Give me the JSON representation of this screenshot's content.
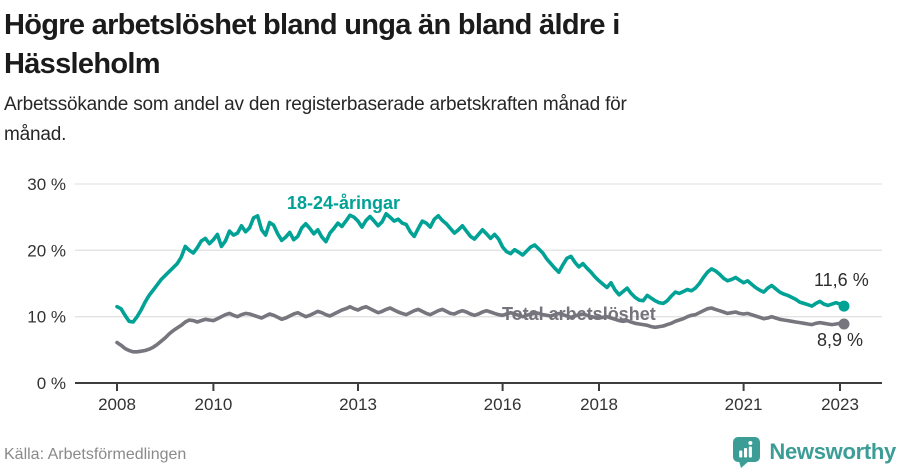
{
  "header": {
    "title_lines": [
      "Högre arbetslöshet bland unga än bland äldre i",
      "Hässleholm"
    ],
    "subtitle_lines": [
      "Arbetssökande som andel av den registerbaserade arbetskraften månad för",
      "månad."
    ]
  },
  "chart_data": {
    "type": "line",
    "title": "Högre arbetslöshet bland unga än bland äldre i Hässleholm",
    "subtitle": "Arbetssökande som andel av den registerbaserade arbetskraften månad för månad.",
    "x_start_year": 2008,
    "x_frequency": "monthly",
    "x_ticks": [
      {
        "year": 2008,
        "label": "2008"
      },
      {
        "year": 2010,
        "label": "2010"
      },
      {
        "year": 2013,
        "label": "2013"
      },
      {
        "year": 2016,
        "label": "2016"
      },
      {
        "year": 2018,
        "label": "2018"
      },
      {
        "year": 2021,
        "label": "2021"
      },
      {
        "year": 2023,
        "label": "2023"
      }
    ],
    "y_ticks": [
      {
        "value": 0,
        "label": "0 %"
      },
      {
        "value": 10,
        "label": "10 %"
      },
      {
        "value": 20,
        "label": "20 %"
      },
      {
        "value": 30,
        "label": "30 %"
      }
    ],
    "ylim": [
      0,
      30
    ],
    "grid": "horizontal",
    "grid_color": "#e3e3e3",
    "axis_color": "#3d3d3d",
    "axis_text_color": "#333333",
    "legend_position": "inline-labels",
    "series": [
      {
        "id": "youth",
        "name": "18-24-åringar",
        "color": "#00a296",
        "end_label": "11,6 %",
        "end_value": 11.6,
        "values": [
          11.5,
          11.2,
          10.2,
          9.3,
          9.2,
          10.0,
          11.0,
          12.2,
          13.2,
          14.0,
          14.8,
          15.6,
          16.2,
          16.8,
          17.4,
          18.0,
          19.0,
          20.6,
          20.0,
          19.6,
          20.4,
          21.4,
          21.8,
          21.0,
          21.6,
          22.4,
          20.6,
          21.4,
          22.9,
          22.3,
          22.6,
          23.7,
          22.8,
          23.4,
          24.9,
          25.2,
          23.1,
          22.3,
          24.2,
          23.8,
          22.5,
          21.5,
          22.0,
          22.7,
          21.6,
          22.1,
          23.4,
          24.0,
          23.3,
          22.5,
          23.1,
          22.0,
          21.3,
          22.6,
          23.3,
          24.1,
          23.6,
          24.4,
          25.3,
          25.0,
          24.4,
          23.5,
          24.5,
          25.1,
          24.4,
          23.7,
          24.3,
          25.5,
          25.0,
          24.4,
          24.7,
          24.1,
          23.9,
          22.8,
          22.1,
          23.3,
          24.4,
          24.1,
          23.5,
          24.7,
          25.2,
          24.5,
          24.0,
          23.3,
          22.6,
          23.1,
          23.7,
          22.9,
          22.1,
          21.7,
          22.4,
          23.1,
          22.5,
          21.8,
          22.4,
          21.7,
          20.5,
          19.8,
          19.5,
          20.1,
          19.7,
          19.3,
          19.9,
          20.5,
          20.8,
          20.2,
          19.6,
          18.7,
          18.0,
          17.3,
          16.7,
          17.8,
          18.8,
          19.1,
          18.2,
          17.5,
          18.0,
          17.3,
          16.7,
          16.0,
          15.4,
          14.9,
          14.4,
          15.1,
          14.0,
          13.3,
          13.8,
          14.3,
          13.5,
          12.9,
          12.5,
          12.4,
          13.2,
          12.8,
          12.4,
          12.1,
          12.0,
          12.4,
          13.1,
          13.7,
          13.5,
          13.8,
          14.1,
          13.9,
          14.3,
          15.0,
          15.9,
          16.7,
          17.2,
          16.9,
          16.4,
          15.8,
          15.4,
          15.6,
          15.9,
          15.5,
          15.1,
          15.4,
          14.9,
          14.4,
          14.0,
          13.7,
          14.3,
          14.7,
          14.2,
          13.7,
          13.4,
          13.2,
          12.9,
          12.6,
          12.2,
          12.0,
          11.8,
          11.6,
          12.0,
          12.3,
          11.9,
          11.7,
          11.9,
          12.1,
          11.9,
          11.6
        ]
      },
      {
        "id": "total",
        "name": "Total arbetslöshet",
        "color": "#77757d",
        "end_label": "8,9 %",
        "end_value": 8.9,
        "values": [
          6.1,
          5.7,
          5.2,
          4.9,
          4.7,
          4.7,
          4.8,
          4.9,
          5.1,
          5.4,
          5.8,
          6.3,
          6.8,
          7.4,
          7.9,
          8.3,
          8.7,
          9.2,
          9.5,
          9.4,
          9.2,
          9.4,
          9.6,
          9.5,
          9.4,
          9.7,
          10.0,
          10.3,
          10.5,
          10.2,
          10.0,
          10.3,
          10.5,
          10.4,
          10.2,
          10.0,
          9.8,
          10.1,
          10.4,
          10.2,
          9.9,
          9.6,
          9.8,
          10.1,
          10.4,
          10.6,
          10.3,
          10.0,
          10.2,
          10.5,
          10.8,
          10.6,
          10.3,
          10.1,
          10.4,
          10.7,
          11.0,
          11.2,
          11.5,
          11.2,
          11.0,
          11.3,
          11.5,
          11.2,
          10.9,
          10.6,
          10.8,
          11.1,
          11.3,
          11.0,
          10.7,
          10.5,
          10.3,
          10.6,
          10.9,
          11.1,
          10.8,
          10.5,
          10.3,
          10.6,
          10.9,
          11.1,
          10.8,
          10.5,
          10.4,
          10.7,
          10.9,
          10.7,
          10.4,
          10.2,
          10.4,
          10.7,
          10.9,
          10.7,
          10.5,
          10.3,
          10.2,
          10.4,
          10.6,
          10.4,
          10.2,
          10.0,
          10.2,
          10.4,
          10.6,
          10.5,
          10.3,
          10.2,
          10.1,
          10.3,
          10.5,
          10.3,
          10.1,
          9.9,
          10.1,
          10.3,
          10.4,
          10.2,
          10.0,
          9.9,
          9.8,
          9.9,
          10.0,
          9.8,
          9.6,
          9.4,
          9.3,
          9.4,
          9.2,
          9.0,
          8.9,
          8.8,
          8.7,
          8.5,
          8.4,
          8.5,
          8.6,
          8.8,
          9.0,
          9.3,
          9.5,
          9.7,
          10.0,
          10.2,
          10.3,
          10.6,
          10.9,
          11.2,
          11.3,
          11.1,
          10.9,
          10.7,
          10.5,
          10.6,
          10.7,
          10.5,
          10.4,
          10.5,
          10.3,
          10.1,
          9.9,
          9.7,
          9.8,
          10.0,
          9.8,
          9.6,
          9.5,
          9.4,
          9.3,
          9.2,
          9.1,
          9.0,
          8.9,
          8.8,
          9.0,
          9.1,
          9.0,
          8.9,
          8.8,
          8.9,
          9.0,
          8.9
        ]
      }
    ]
  },
  "footer": {
    "source": "Källa: Arbetsförmedlingen",
    "brand": "Newsworthy",
    "brand_color": "#3c9d96"
  }
}
